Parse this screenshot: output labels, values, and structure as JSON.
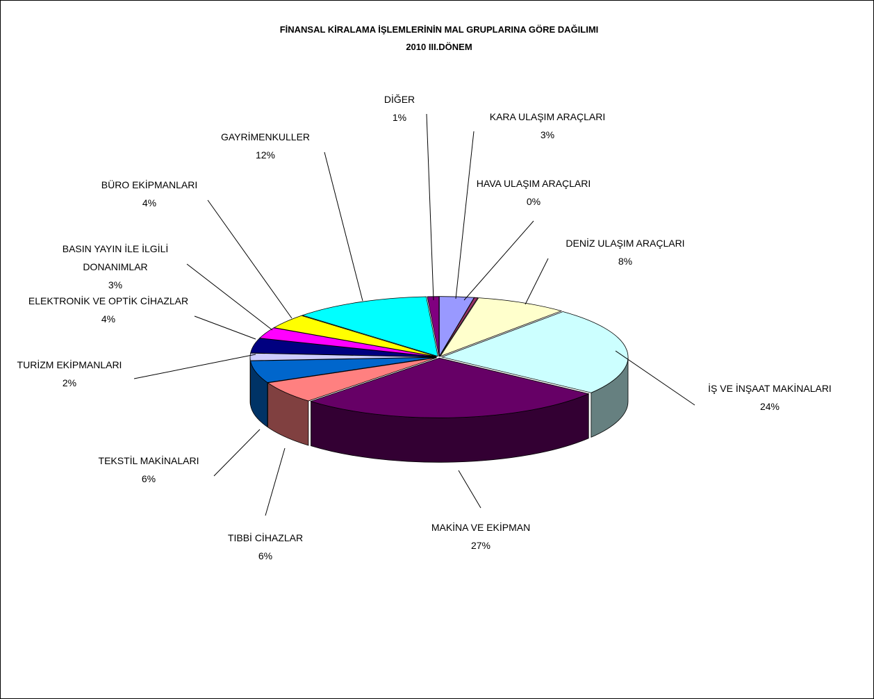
{
  "chart_data": {
    "type": "pie",
    "style": "3d-exploded",
    "title": "FİNANSAL KİRALAMA İŞLEMLERİNİN MAL GRUPLARINA GÖRE DAĞILIMI",
    "subtitle": "2010   III.DÖNEM",
    "legend": "none",
    "slices": [
      {
        "name": "KARA ULAŞIM ARAÇLARI",
        "value": 3,
        "label": "3%",
        "color": "#9999ff"
      },
      {
        "name": "HAVA ULAŞIM ARAÇLARI",
        "value": 0.3,
        "label": "0%",
        "color": "#993366"
      },
      {
        "name": "DENİZ ULAŞIM ARAÇLARI",
        "value": 8,
        "label": "8%",
        "color": "#ffffcc"
      },
      {
        "name": "İŞ VE İNŞAAT MAKİNALARI",
        "value": 24,
        "label": "24%",
        "color": "#ccffff"
      },
      {
        "name": "MAKİNA VE EKİPMAN",
        "value": 27,
        "label": "27%",
        "color": "#660066"
      },
      {
        "name": "TIBBİ CİHAZLAR",
        "value": 6,
        "label": "6%",
        "color": "#ff8080"
      },
      {
        "name": "TEKSTİL MAKİNALARI",
        "value": 6,
        "label": "6%",
        "color": "#0066cc"
      },
      {
        "name": "TURİZM EKİPMANLARI",
        "value": 2,
        "label": "2%",
        "color": "#ccccff"
      },
      {
        "name": "ELEKTRONİK VE OPTİK CİHAZLAR",
        "value": 4,
        "label": "4%",
        "color": "#000080"
      },
      {
        "name": "BASIN YAYIN İLE İLGİLİ DONANIMLAR",
        "value": 3,
        "label": "3%",
        "color": "#ff00ff"
      },
      {
        "name": "BÜRO EKİPMANLARI",
        "value": 4,
        "label": "4%",
        "color": "#ffff00"
      },
      {
        "name": "GAYRİMENKULLER",
        "value": 12,
        "label": "12%",
        "color": "#00ffff"
      },
      {
        "name": "DİĞER",
        "value": 1,
        "label": "1%",
        "color": "#800080"
      }
    ]
  }
}
